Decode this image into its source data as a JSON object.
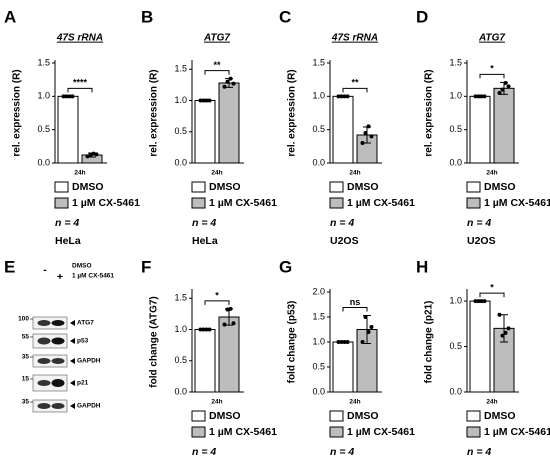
{
  "chart_data": [
    {
      "type": "bar",
      "panel": "A",
      "title": "47S rRNA",
      "ylabel": "rel. expression (R)",
      "categories": [
        "24h"
      ],
      "series": [
        {
          "name": "DMSO",
          "color": "#ffffff",
          "values": [
            1.0
          ],
          "points": [
            [
              1,
              1,
              1,
              1
            ]
          ]
        },
        {
          "name": "1 µM CX-5461",
          "color": "#bdbdbd",
          "values": [
            0.12
          ],
          "errors": [
            0.03
          ],
          "points": [
            [
              0.1,
              0.12,
              0.14,
              0.13
            ]
          ]
        }
      ],
      "significance": "****",
      "ylim": [
        0,
        1.5
      ],
      "yticks": [
        {
          "value": 0,
          "label": "0.0"
        },
        0.5,
        {
          "value": 1,
          "label": "1.0"
        },
        1.5
      ],
      "n_label": "n = 4",
      "cell_line": "HeLa"
    },
    {
      "type": "bar",
      "panel": "B",
      "title": "ATG7",
      "ylabel": "rel. expression (R)",
      "categories": [
        "24h"
      ],
      "series": [
        {
          "name": "DMSO",
          "color": "#ffffff",
          "values": [
            1.0
          ],
          "points": [
            [
              1,
              1,
              1,
              1
            ]
          ]
        },
        {
          "name": "1 µM CX-5461",
          "color": "#bdbdbd",
          "values": [
            1.28
          ],
          "errors": [
            0.07
          ],
          "points": [
            [
              1.22,
              1.3,
              1.35,
              1.27
            ]
          ]
        }
      ],
      "significance": "**",
      "ylim": [
        0,
        1.6
      ],
      "yticks": [
        {
          "value": 0,
          "label": "0.0"
        },
        0.5,
        {
          "value": 1,
          "label": "1.0"
        },
        1.5
      ],
      "n_label": "n = 4",
      "cell_line": "HeLa"
    },
    {
      "type": "bar",
      "panel": "C",
      "title": "47S rRNA",
      "ylabel": "rel. expression (R)",
      "categories": [
        "24h"
      ],
      "series": [
        {
          "name": "DMSO",
          "color": "#ffffff",
          "values": [
            1.0
          ],
          "points": [
            [
              1,
              1,
              1,
              1
            ]
          ]
        },
        {
          "name": "1 µM CX-5461",
          "color": "#bdbdbd",
          "values": [
            0.42
          ],
          "errors": [
            0.12
          ],
          "points": [
            [
              0.3,
              0.45,
              0.55,
              0.4
            ]
          ]
        }
      ],
      "significance": "**",
      "ylim": [
        0,
        1.5
      ],
      "yticks": [
        {
          "value": 0,
          "label": "0.0"
        },
        0.5,
        {
          "value": 1,
          "label": "1.0"
        },
        1.5
      ],
      "n_label": "n = 4",
      "cell_line": "U2OS"
    },
    {
      "type": "bar",
      "panel": "D",
      "title": "ATG7",
      "ylabel": "rel. expression (R)",
      "categories": [
        "24h"
      ],
      "series": [
        {
          "name": "DMSO",
          "color": "#ffffff",
          "values": [
            1.0
          ],
          "points": [
            [
              1,
              1,
              1,
              1
            ]
          ]
        },
        {
          "name": "1 µM CX-5461",
          "color": "#bdbdbd",
          "values": [
            1.12
          ],
          "errors": [
            0.09
          ],
          "points": [
            [
              1.05,
              1.1,
              1.2,
              1.15
            ]
          ]
        }
      ],
      "significance": "*",
      "ylim": [
        0,
        1.5
      ],
      "yticks": [
        {
          "value": 0,
          "label": "0.0"
        },
        0.5,
        {
          "value": 1,
          "label": "1.0"
        },
        1.5
      ],
      "n_label": "n = 4",
      "cell_line": "U2OS"
    },
    {
      "type": "bar",
      "panel": "F",
      "ylabel": "fold change (ATG7)",
      "categories": [
        "24h"
      ],
      "series": [
        {
          "name": "DMSO",
          "color": "#ffffff",
          "values": [
            1.0
          ],
          "points": [
            [
              1,
              1,
              1,
              1
            ]
          ]
        },
        {
          "name": "1 µM CX-5461",
          "color": "#bdbdbd",
          "values": [
            1.2
          ],
          "errors": [
            0.13
          ],
          "points": [
            [
              1.08,
              1.32,
              1.33,
              1.1
            ]
          ]
        }
      ],
      "significance": "*",
      "ylim": [
        0,
        1.6
      ],
      "yticks": [
        {
          "value": 0,
          "label": "0.0"
        },
        0.5,
        {
          "value": 1,
          "label": "1.0"
        },
        1.5
      ],
      "n_label": "n = 4"
    },
    {
      "type": "bar",
      "panel": "G",
      "ylabel": "fold change (p53)",
      "categories": [
        "24h"
      ],
      "series": [
        {
          "name": "DMSO",
          "color": "#ffffff",
          "values": [
            1.0
          ],
          "points": [
            [
              1,
              1,
              1,
              1
            ]
          ]
        },
        {
          "name": "1 µM CX-5461",
          "color": "#bdbdbd",
          "values": [
            1.25
          ],
          "errors": [
            0.28
          ],
          "points": [
            [
              1.0,
              1.5,
              1.2,
              1.3
            ]
          ]
        }
      ],
      "significance": "ns",
      "ylim": [
        0,
        2
      ],
      "yticks": [
        {
          "value": 0,
          "label": "0.0"
        },
        0.5,
        {
          "value": 1,
          "label": "1.0"
        },
        1.5,
        {
          "value": 2,
          "label": "2.0"
        }
      ],
      "n_label": "n = 4"
    },
    {
      "type": "bar",
      "panel": "H",
      "ylabel": "fold change (p21)",
      "categories": [
        "24h"
      ],
      "series": [
        {
          "name": "DMSO",
          "color": "#ffffff",
          "values": [
            1.0
          ],
          "points": [
            [
              1,
              1,
              1,
              1
            ]
          ]
        },
        {
          "name": "1 µM CX-5461",
          "color": "#bdbdbd",
          "values": [
            0.7
          ],
          "errors": [
            0.15
          ],
          "points": [
            [
              0.85,
              0.62,
              0.65,
              0.7
            ]
          ]
        }
      ],
      "significance": "*",
      "ylim": [
        0,
        1.1
      ],
      "yticks": [
        {
          "value": 0,
          "label": "0.0"
        },
        0.5,
        {
          "value": 1,
          "label": "1.0"
        }
      ],
      "n_label": "n = 4"
    }
  ],
  "blot": {
    "panel": "E",
    "lanes": [
      "-",
      "+"
    ],
    "conditions": [
      "DMSO",
      "1 µM CX-5461"
    ],
    "rows": [
      {
        "marker": "100",
        "label": "ATG7"
      },
      {
        "marker": "55",
        "label": "p53"
      },
      {
        "marker": "35",
        "label": "GAPDH"
      },
      {
        "marker": "15",
        "label": "p21"
      },
      {
        "marker": "35",
        "label": "GAPDH"
      }
    ]
  }
}
